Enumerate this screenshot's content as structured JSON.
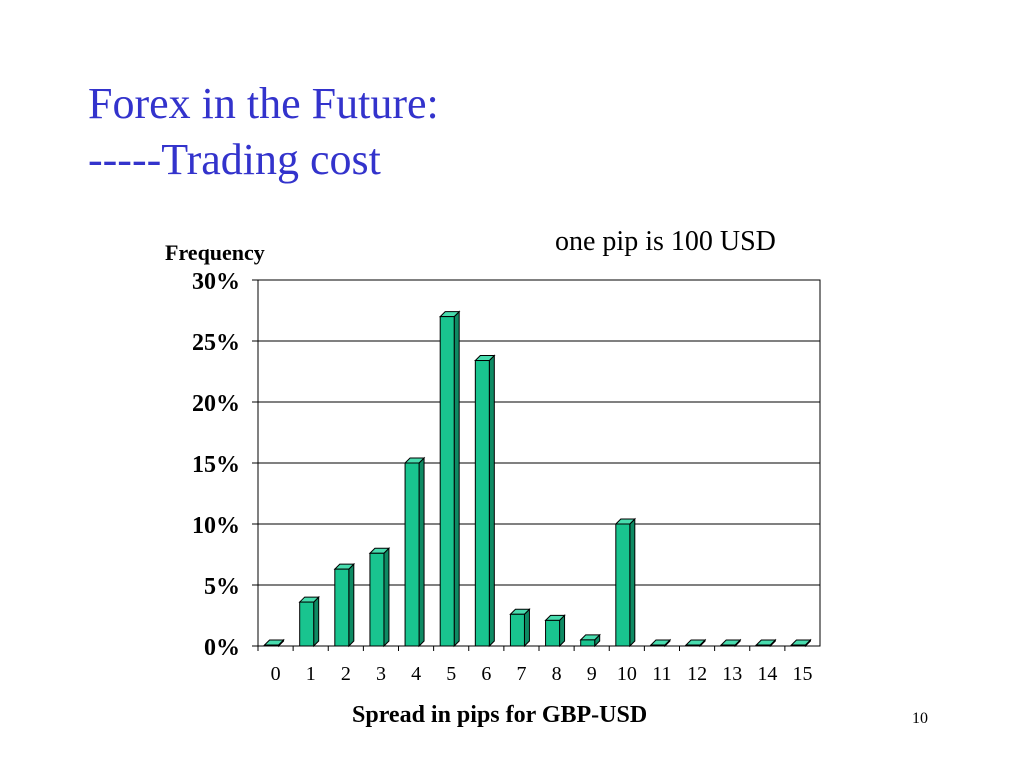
{
  "slide": {
    "title_line1": "Forex in the Future:",
    "title_line2": "-----Trading cost",
    "annotation": "one pip is 100 USD",
    "page_number": "10"
  },
  "colors": {
    "title": "#3333cc",
    "bar_front": "#19c48f",
    "bar_side": "#0e8a63",
    "bar_top": "#48dcae"
  },
  "chart_data": {
    "type": "bar",
    "title": "",
    "xlabel": "Spread in pips for GBP-USD",
    "ylabel": "Frequency",
    "categories": [
      "0",
      "1",
      "2",
      "3",
      "4",
      "5",
      "6",
      "7",
      "8",
      "9",
      "10",
      "11",
      "12",
      "13",
      "14",
      "15"
    ],
    "values": [
      0,
      3.6,
      6.3,
      7.6,
      15.0,
      27.0,
      23.4,
      2.6,
      2.1,
      0.5,
      10.0,
      0,
      0,
      0,
      0,
      0
    ],
    "ylim": [
      0,
      30
    ],
    "yticks": [
      "0%",
      "5%",
      "10%",
      "15%",
      "20%",
      "25%",
      "30%"
    ],
    "grid": true
  }
}
